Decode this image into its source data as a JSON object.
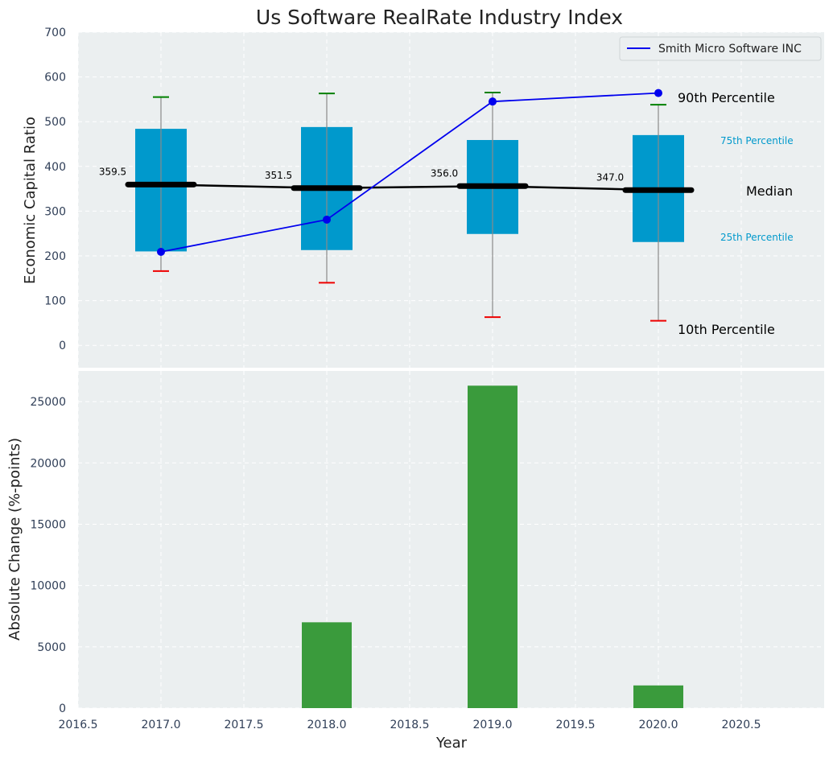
{
  "chart_data": [
    {
      "type": "box",
      "title": "Us Software RealRate Industry Index",
      "ylabel": "Economic Capital Ratio",
      "ylim": [
        -50,
        700
      ],
      "yticks": [
        0,
        100,
        200,
        300,
        400,
        500,
        600,
        700
      ],
      "ytick_labels": [
        "0",
        "100",
        "200",
        "300",
        "400",
        "500",
        "600",
        "700"
      ],
      "grid": true,
      "legend_position": "top-right",
      "box_color": "#0099cc",
      "boxes": [
        {
          "x": 2017,
          "p10": 166,
          "p25": 210,
          "median": 359.5,
          "p75": 484,
          "p90": 555,
          "median_label": "359.5"
        },
        {
          "x": 2018,
          "p10": 140,
          "p25": 213,
          "median": 351.5,
          "p75": 488,
          "p90": 563,
          "median_label": "351.5"
        },
        {
          "x": 2019,
          "p10": 63,
          "p25": 249,
          "median": 356.0,
          "p75": 459,
          "p90": 565,
          "median_label": "356.0"
        },
        {
          "x": 2020,
          "p10": 55,
          "p25": 231,
          "median": 347.0,
          "p75": 470,
          "p90": 538,
          "median_label": "347.0"
        }
      ],
      "company_series": {
        "name": "Smith Micro Software INC",
        "color": "#0000ee",
        "x": [
          2017,
          2018,
          2019,
          2020
        ],
        "y": [
          209,
          281,
          545,
          564
        ]
      },
      "annotations": {
        "p90": "90th Percentile",
        "p75": "75th Percentile",
        "median": "Median",
        "p25": "25th Percentile",
        "p10": "10th Percentile"
      }
    },
    {
      "type": "bar",
      "xlabel": "Year",
      "ylabel": "Absolute Change (%-points)",
      "xlim": [
        2016.5,
        2021.0
      ],
      "ylim": [
        0,
        27500
      ],
      "xticks": [
        2016.5,
        2017.0,
        2017.5,
        2018.0,
        2018.5,
        2019.0,
        2019.5,
        2020.0,
        2020.5
      ],
      "xtick_labels": [
        "2016.5",
        "2017.0",
        "2017.5",
        "2018.0",
        "2018.5",
        "2019.0",
        "2019.5",
        "2020.0",
        "2020.5"
      ],
      "yticks": [
        0,
        5000,
        10000,
        15000,
        20000,
        25000
      ],
      "ytick_labels": [
        "0",
        "5000",
        "10000",
        "15000",
        "20000",
        "25000"
      ],
      "grid": true,
      "bar_color": "#3a9b3c",
      "x": [
        2018,
        2019,
        2020
      ],
      "values": [
        7000,
        26300,
        1850
      ]
    }
  ]
}
